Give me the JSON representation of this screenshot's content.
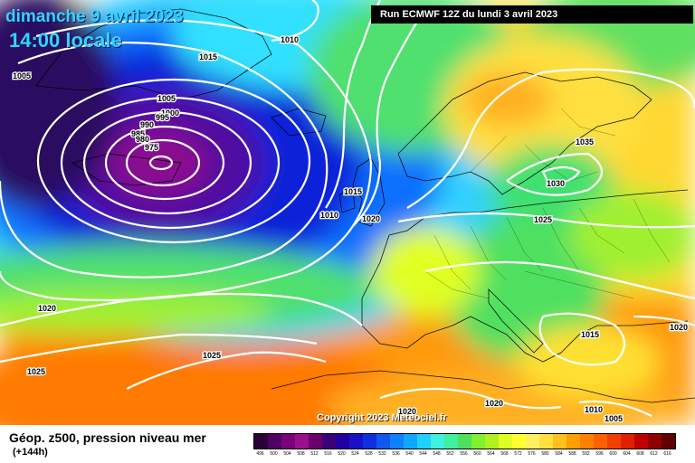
{
  "header": {
    "date": "dimanche 9 avril 2023",
    "time": "14:00 locale",
    "run": "Run ECMWF 12Z du lundi 3 avril 2023"
  },
  "copyright": "Copyright 2023 Meteociel.fr",
  "legend": {
    "title": "Géop. z500, pression niveau mer",
    "subtitle": "(+144h)",
    "values": [
      "496",
      "500",
      "504",
      "508",
      "512",
      "516",
      "520",
      "524",
      "528",
      "532",
      "536",
      "540",
      "544",
      "548",
      "552",
      "556",
      "560",
      "564",
      "568",
      "572",
      "576",
      "580",
      "584",
      "588",
      "592",
      "596",
      "600",
      "604",
      "608",
      "612",
      "616"
    ],
    "colors": [
      "#2a0036",
      "#500060",
      "#7a007a",
      "#99108f",
      "#6a006a",
      "#3c0078",
      "#2200a0",
      "#1a10c8",
      "#1030e0",
      "#1058f0",
      "#1080ff",
      "#10a8ff",
      "#20d0ff",
      "#40f0e0",
      "#40f0a0",
      "#50e060",
      "#80f030",
      "#b0f020",
      "#e0ff20",
      "#ffff30",
      "#fff060",
      "#ffe040",
      "#ffc020",
      "#ffa000",
      "#ff8000",
      "#ff6000",
      "#f04000",
      "#e02000",
      "#c00000",
      "#900000",
      "#600000"
    ]
  },
  "isobars": [
    {
      "id": "h1",
      "label": "1005"
    },
    {
      "id": "h2",
      "label": "1010"
    },
    {
      "id": "h3",
      "label": "1015"
    },
    {
      "id": "h4",
      "label": "1005"
    },
    {
      "id": "h5",
      "label": "1000"
    },
    {
      "id": "h6",
      "label": "995"
    },
    {
      "id": "h7",
      "label": "990"
    },
    {
      "id": "h8",
      "label": "985"
    },
    {
      "id": "h9",
      "label": "980"
    },
    {
      "id": "h10",
      "label": "975"
    },
    {
      "id": "h11",
      "label": "1015"
    },
    {
      "id": "h12",
      "label": "1010"
    },
    {
      "id": "h13",
      "label": "1020"
    },
    {
      "id": "h14",
      "label": "1035"
    },
    {
      "id": "h15",
      "label": "1030"
    },
    {
      "id": "h16",
      "label": "1025"
    },
    {
      "id": "h17",
      "label": "1020"
    },
    {
      "id": "h18",
      "label": "1025"
    },
    {
      "id": "h19",
      "label": "1025"
    },
    {
      "id": "h20",
      "label": "1015"
    },
    {
      "id": "h21",
      "label": "1020"
    },
    {
      "id": "h22",
      "label": "1020"
    },
    {
      "id": "h23",
      "label": "1020"
    },
    {
      "id": "h24",
      "label": "1010"
    },
    {
      "id": "h25",
      "label": "1005"
    }
  ]
}
